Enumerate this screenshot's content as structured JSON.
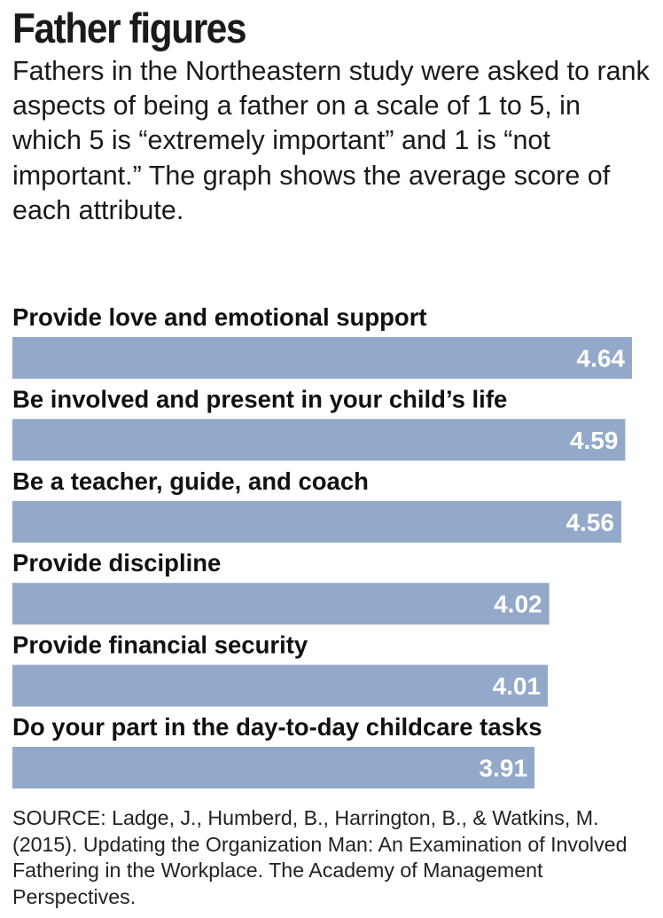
{
  "title": "Father figures",
  "intro": "Fathers in the Northeastern study were asked to rank aspects of being a father on a scale of 1 to 5, in which 5 is “extremely important” and 1 is “not important.” The graph shows the average score of each attribute.",
  "source": "SOURCE: Ladge, J., Humberd, B., Harrington, B., & Watkins, M. (2015). Updating the Organization Man: An Examination of Involved Fathering in the Workplace. The Academy of Management Perspectives.",
  "colors": {
    "bar": "#93a9c9",
    "value_text": "#ffffff",
    "text": "#111111"
  },
  "chart_data": {
    "type": "bar",
    "orientation": "horizontal",
    "categories": [
      "Provide love and emotional support",
      "Be involved and present in your child’s life",
      "Be a teacher, guide, and coach",
      "Provide discipline",
      "Provide financial security",
      "Do your part in the day-to-day childcare tasks"
    ],
    "values": [
      4.64,
      4.59,
      4.56,
      4.02,
      4.01,
      3.91
    ],
    "value_labels": [
      "4.64",
      "4.59",
      "4.56",
      "4.02",
      "4.01",
      "3.91"
    ],
    "xlim": [
      0,
      4.64
    ]
  }
}
